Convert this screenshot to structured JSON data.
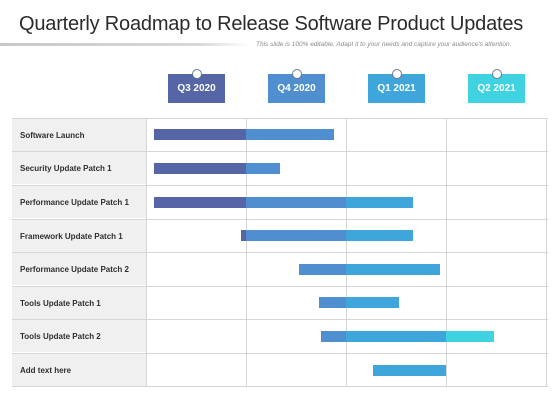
{
  "header": {
    "title": "Quarterly Roadmap to Release Software Product Updates",
    "subtitle": "This slide is 100% editable. Adapt it to your needs and capture your audience's attention."
  },
  "colors": {
    "q3": "#5565a6",
    "q4": "#4f8fcf",
    "q1": "#3fa6dc",
    "q2": "#3fd2e0",
    "label_bg": "#f0f0f0",
    "grid": "#d6d6d6"
  },
  "quarters": [
    {
      "label": "Q3 2020",
      "color": "#5565a6"
    },
    {
      "label": "Q4 2020",
      "color": "#4f8fcf"
    },
    {
      "label": "Q1 2021",
      "color": "#3fa6dc"
    },
    {
      "label": "Q2 2021",
      "color": "#3fd2e0"
    }
  ],
  "timeline": {
    "start_quarter": 0,
    "end_quarter": 4
  },
  "tasks": [
    {
      "label": "Software Launch",
      "start": 0.08,
      "end": 1.88
    },
    {
      "label": "Security Update Patch 1",
      "start": 0.08,
      "end": 1.34
    },
    {
      "label": "Performance Update Patch 1",
      "start": 0.08,
      "end": 2.67
    },
    {
      "label": "Framework Update Patch 1",
      "start": 0.95,
      "end": 2.67
    },
    {
      "label": "Performance Update Patch 2",
      "start": 1.53,
      "end": 2.94
    },
    {
      "label": "Tools Update Patch 1",
      "start": 1.73,
      "end": 2.53
    },
    {
      "label": "Tools Update Patch 2",
      "start": 1.75,
      "end": 3.48
    },
    {
      "label": "Add text here",
      "start": 2.27,
      "end": 3.0
    }
  ]
}
